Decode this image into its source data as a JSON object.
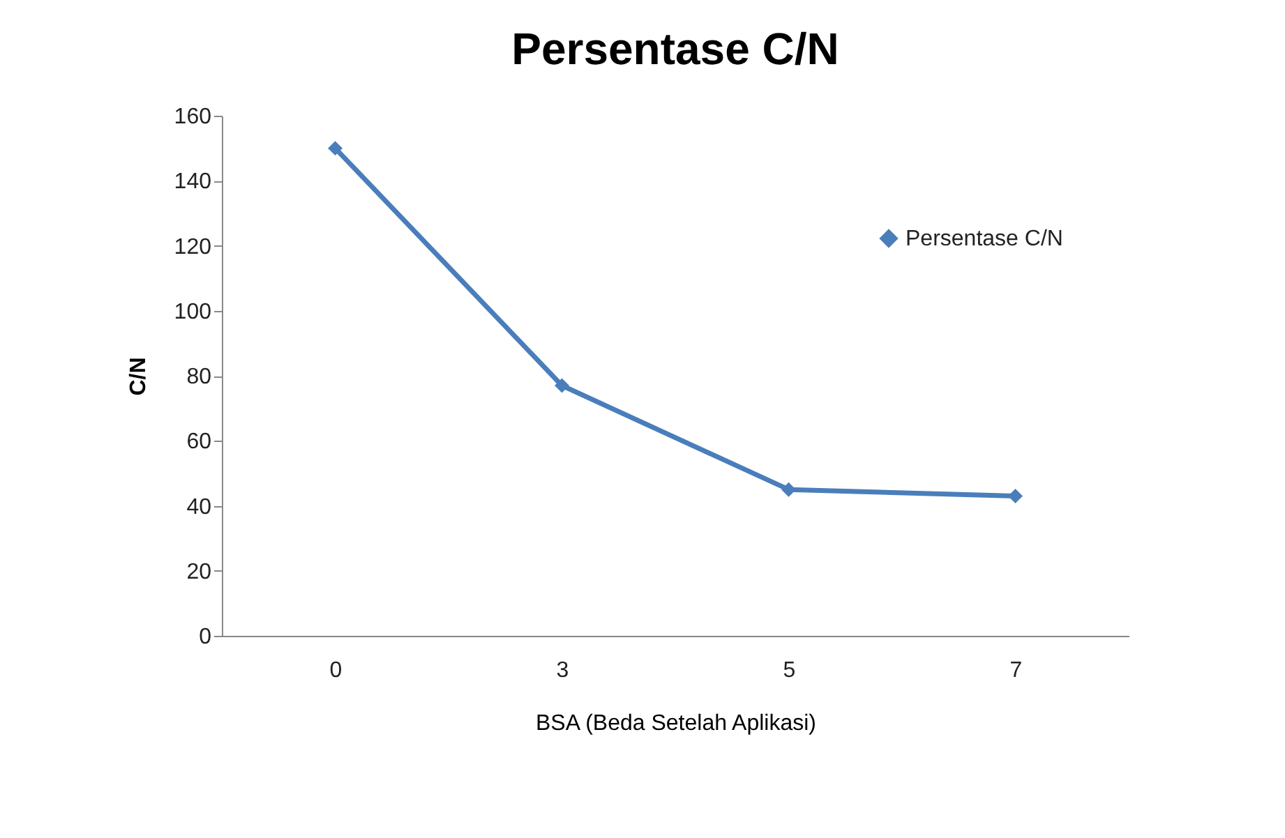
{
  "chart_data": {
    "type": "line",
    "title": "Persentase C/N",
    "xlabel": "BSA (Beda Setelah Aplikasi)",
    "ylabel": "C/N",
    "categories": [
      "0",
      "3",
      "5",
      "7"
    ],
    "series": [
      {
        "name": "Persentase C/N",
        "color": "#4a7ebb",
        "values": [
          150,
          77,
          45,
          43
        ]
      }
    ],
    "ylim": [
      0,
      160
    ],
    "yticks": [
      0,
      20,
      40,
      60,
      80,
      100,
      120,
      140,
      160
    ],
    "grid": false,
    "legend": "right",
    "marker": "diamond",
    "line_style": "solid"
  }
}
